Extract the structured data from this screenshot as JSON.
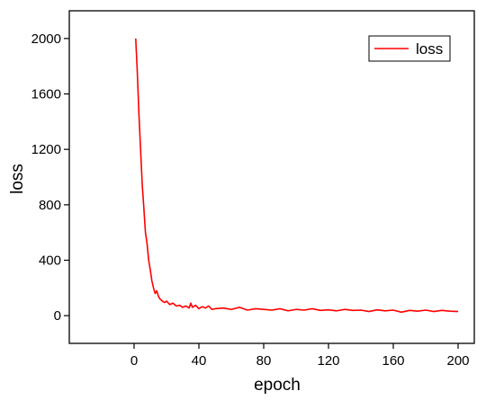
{
  "chart_data": {
    "type": "line",
    "xlabel": "epoch",
    "ylabel": "loss",
    "xlim": [
      -40,
      210
    ],
    "ylim": [
      -200,
      2200
    ],
    "xticks": [
      0,
      40,
      80,
      120,
      160,
      200
    ],
    "yticks": [
      0,
      400,
      800,
      1200,
      1600,
      2000
    ],
    "legend_position": "top-right",
    "grid": false,
    "series": [
      {
        "name": "loss",
        "color": "#ff0000",
        "x": [
          1,
          2,
          3,
          4,
          5,
          6,
          7,
          8,
          9,
          10,
          11,
          12,
          13,
          14,
          15,
          16,
          17,
          18,
          19,
          20,
          22,
          24,
          26,
          28,
          30,
          32,
          34,
          35,
          36,
          38,
          40,
          42,
          44,
          46,
          48,
          50,
          55,
          60,
          65,
          70,
          75,
          80,
          85,
          90,
          95,
          100,
          105,
          110,
          115,
          120,
          125,
          130,
          135,
          140,
          145,
          150,
          155,
          160,
          165,
          170,
          175,
          180,
          185,
          190,
          195,
          200
        ],
        "values": [
          2000,
          1750,
          1450,
          1200,
          950,
          780,
          600,
          520,
          400,
          330,
          250,
          200,
          160,
          180,
          140,
          120,
          110,
          100,
          95,
          105,
          80,
          90,
          70,
          75,
          60,
          70,
          55,
          90,
          60,
          75,
          50,
          65,
          55,
          70,
          45,
          50,
          55,
          45,
          60,
          40,
          50,
          45,
          40,
          50,
          35,
          45,
          40,
          50,
          38,
          42,
          35,
          45,
          38,
          40,
          30,
          42,
          35,
          40,
          25,
          38,
          32,
          40,
          30,
          38,
          32,
          30
        ]
      }
    ]
  }
}
